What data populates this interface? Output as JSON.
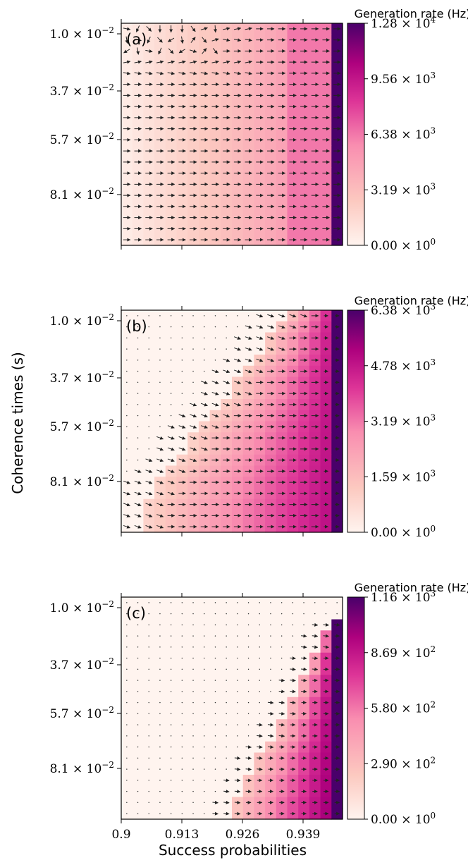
{
  "figure": {
    "ylabel": "Coherence times (s)",
    "xlabel": "Success probabilities",
    "x_ticks": [
      "0.9",
      "0.913",
      "0.926",
      "0.939"
    ],
    "y_ticks": [
      {
        "mant": "1.0",
        "exp": "−2"
      },
      {
        "mant": "3.7",
        "exp": "−2"
      },
      {
        "mant": "5.7",
        "exp": "−2"
      },
      {
        "mant": "8.1",
        "exp": "−2"
      }
    ],
    "colormap": [
      "#fff4ef",
      "#fcc9c0",
      "#f98eb0",
      "#dd3497",
      "#ae017e",
      "#49006a"
    ]
  },
  "chart_data": [
    {
      "type": "heatmap",
      "panel_label": "(a)",
      "colorbar_label": "Generation rate (Hz)",
      "colorbar_ticks": [
        {
          "mant": "1.28",
          "exp": "4"
        },
        {
          "mant": "9.56",
          "exp": "3"
        },
        {
          "mant": "6.38",
          "exp": "3"
        },
        {
          "mant": "3.19",
          "exp": "3"
        },
        {
          "mant": "0.00",
          "exp": "0"
        }
      ],
      "value_range": [
        0,
        12800
      ],
      "columns": 20,
      "rows": 20,
      "column_values": [
        560,
        840,
        1120,
        1400,
        1680,
        1950,
        2240,
        2520,
        2800,
        3100,
        3400,
        3700,
        4000,
        4300,
        4700,
        6380,
        6380,
        6380,
        6380,
        12800
      ],
      "notes": "rate depends only on success probability; arrows mostly point right, disordered near top-left"
    },
    {
      "type": "heatmap",
      "panel_label": "(b)",
      "colorbar_label": "Generation rate (Hz)",
      "colorbar_ticks": [
        {
          "mant": "6.38",
          "exp": "3"
        },
        {
          "mant": "4.78",
          "exp": "3"
        },
        {
          "mant": "3.19",
          "exp": "3"
        },
        {
          "mant": "1.59",
          "exp": "3"
        },
        {
          "mant": "0.00",
          "exp": "0"
        }
      ],
      "value_range": [
        0,
        6380
      ],
      "columns": 20,
      "rows": 20,
      "notes": "staircase boundary: nonzero region starts at high success probability for short coherence times and shifts left for longer coherence times"
    },
    {
      "type": "heatmap",
      "panel_label": "(c)",
      "colorbar_label": "Generation rate (Hz)",
      "colorbar_ticks": [
        {
          "mant": "1.16",
          "exp": "3"
        },
        {
          "mant": "8.69",
          "exp": "2"
        },
        {
          "mant": "5.80",
          "exp": "2"
        },
        {
          "mant": "2.90",
          "exp": "2"
        },
        {
          "mant": "0.00",
          "exp": "0"
        }
      ],
      "value_range": [
        0,
        1160
      ],
      "columns": 20,
      "rows": 20,
      "notes": "nonzero only in bottom-right staircase region"
    }
  ]
}
